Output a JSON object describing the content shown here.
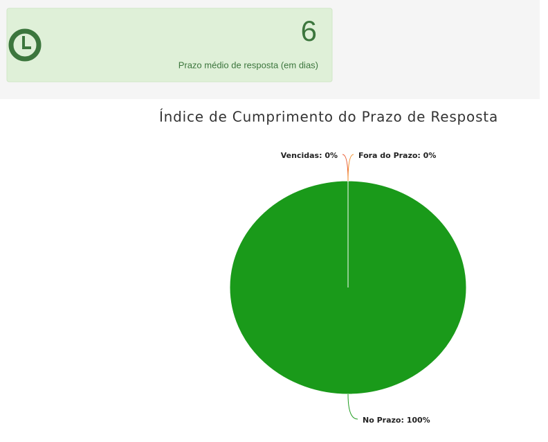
{
  "card": {
    "value": 6,
    "label": "Prazo médio de resposta (em dias)"
  },
  "chart_data": {
    "type": "pie",
    "title": "Índice de Cumprimento do Prazo de Resposta",
    "values": [
      0,
      0,
      100
    ],
    "value_labels": [
      "Vencidas: 0%",
      "Fora do Prazo: 0%",
      "No Prazo: 100%"
    ],
    "colors": [
      "#e8542a",
      "#f08a24",
      "#1a9a1a"
    ]
  }
}
